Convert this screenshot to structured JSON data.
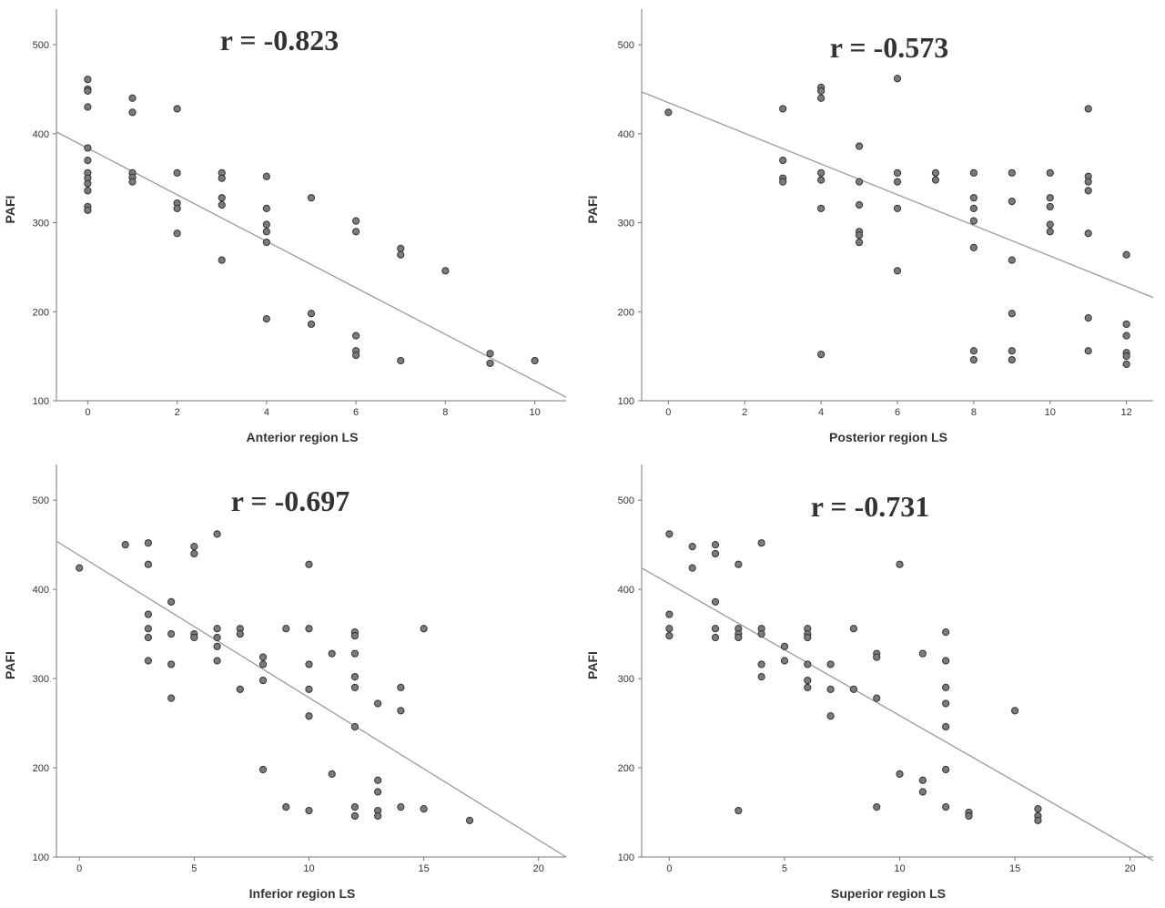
{
  "chart_data": [
    {
      "type": "scatter",
      "title": "r = -0.823",
      "xlabel": "Anterior region LS",
      "ylabel": "PAFI",
      "xlim": [
        -0.7,
        10.7
      ],
      "ylim": [
        100,
        540
      ],
      "xticks": [
        0,
        2,
        4,
        6,
        8,
        10
      ],
      "yticks": [
        100,
        200,
        300,
        400,
        500
      ],
      "fit_line": [
        [
          -0.7,
          402
        ],
        [
          10.7,
          104
        ]
      ],
      "points": [
        [
          0,
          461
        ],
        [
          0,
          450
        ],
        [
          0,
          448
        ],
        [
          0,
          430
        ],
        [
          0,
          384
        ],
        [
          0,
          370
        ],
        [
          0,
          356
        ],
        [
          0,
          350
        ],
        [
          0,
          344
        ],
        [
          0,
          336
        ],
        [
          0,
          318
        ],
        [
          0,
          314
        ],
        [
          1,
          440
        ],
        [
          1,
          424
        ],
        [
          1,
          356
        ],
        [
          1,
          351
        ],
        [
          1,
          346
        ],
        [
          2,
          428
        ],
        [
          2,
          356
        ],
        [
          2,
          322
        ],
        [
          2,
          316
        ],
        [
          2,
          288
        ],
        [
          3,
          356
        ],
        [
          3,
          350
        ],
        [
          3,
          328
        ],
        [
          3,
          320
        ],
        [
          3,
          258
        ],
        [
          4,
          352
        ],
        [
          4,
          316
        ],
        [
          4,
          298
        ],
        [
          4,
          290
        ],
        [
          4,
          278
        ],
        [
          4,
          192
        ],
        [
          5,
          328
        ],
        [
          5,
          198
        ],
        [
          5,
          186
        ],
        [
          6,
          302
        ],
        [
          6,
          290
        ],
        [
          6,
          173
        ],
        [
          6,
          156
        ],
        [
          6,
          151
        ],
        [
          7,
          271
        ],
        [
          7,
          264
        ],
        [
          7,
          145
        ],
        [
          8,
          246
        ],
        [
          9,
          153
        ],
        [
          9,
          142
        ],
        [
          10,
          145
        ]
      ]
    },
    {
      "type": "scatter",
      "title": "r = -0.573",
      "xlabel": "Posterior region LS",
      "ylabel": "PAFI",
      "xlim": [
        -0.7,
        12.7
      ],
      "ylim": [
        100,
        540
      ],
      "xticks": [
        0,
        2,
        4,
        6,
        8,
        10,
        12
      ],
      "yticks": [
        100,
        200,
        300,
        400,
        500
      ],
      "fit_line": [
        [
          -0.7,
          447
        ],
        [
          12.7,
          216
        ]
      ],
      "points": [
        [
          0,
          424
        ],
        [
          3,
          428
        ],
        [
          3,
          370
        ],
        [
          3,
          350
        ],
        [
          3,
          346
        ],
        [
          4,
          452
        ],
        [
          4,
          448
        ],
        [
          4,
          440
        ],
        [
          4,
          356
        ],
        [
          4,
          348
        ],
        [
          4,
          316
        ],
        [
          4,
          152
        ],
        [
          5,
          386
        ],
        [
          5,
          346
        ],
        [
          5,
          320
        ],
        [
          5,
          290
        ],
        [
          5,
          286
        ],
        [
          5,
          278
        ],
        [
          6,
          462
        ],
        [
          6,
          356
        ],
        [
          6,
          346
        ],
        [
          6,
          316
        ],
        [
          6,
          246
        ],
        [
          7,
          356
        ],
        [
          7,
          348
        ],
        [
          8,
          356
        ],
        [
          8,
          328
        ],
        [
          8,
          316
        ],
        [
          8,
          302
        ],
        [
          8,
          272
        ],
        [
          8,
          156
        ],
        [
          8,
          146
        ],
        [
          9,
          356
        ],
        [
          9,
          324
        ],
        [
          9,
          258
        ],
        [
          9,
          198
        ],
        [
          9,
          156
        ],
        [
          9,
          146
        ],
        [
          10,
          356
        ],
        [
          10,
          328
        ],
        [
          10,
          318
        ],
        [
          10,
          298
        ],
        [
          10,
          290
        ],
        [
          11,
          428
        ],
        [
          11,
          352
        ],
        [
          11,
          346
        ],
        [
          11,
          336
        ],
        [
          11,
          288
        ],
        [
          11,
          193
        ],
        [
          11,
          156
        ],
        [
          12,
          264
        ],
        [
          12,
          186
        ],
        [
          12,
          173
        ],
        [
          12,
          154
        ],
        [
          12,
          150
        ],
        [
          12,
          141
        ]
      ]
    },
    {
      "type": "scatter",
      "title": "r = -0.697",
      "xlabel": "Inferior region LS",
      "ylabel": "PAFI",
      "xlim": [
        -1,
        21.2
      ],
      "ylim": [
        100,
        540
      ],
      "xticks": [
        0,
        5,
        10,
        15,
        20
      ],
      "yticks": [
        100,
        200,
        300,
        400,
        500
      ],
      "fit_line": [
        [
          -1,
          454
        ],
        [
          21.2,
          100
        ]
      ],
      "points": [
        [
          0,
          424
        ],
        [
          2,
          450
        ],
        [
          3,
          452
        ],
        [
          3,
          428
        ],
        [
          3,
          372
        ],
        [
          3,
          356
        ],
        [
          3,
          346
        ],
        [
          3,
          320
        ],
        [
          4,
          386
        ],
        [
          4,
          350
        ],
        [
          4,
          316
        ],
        [
          4,
          278
        ],
        [
          5,
          448
        ],
        [
          5,
          440
        ],
        [
          5,
          350
        ],
        [
          5,
          346
        ],
        [
          6,
          462
        ],
        [
          6,
          356
        ],
        [
          6,
          346
        ],
        [
          6,
          336
        ],
        [
          6,
          320
        ],
        [
          7,
          356
        ],
        [
          7,
          350
        ],
        [
          7,
          288
        ],
        [
          8,
          324
        ],
        [
          8,
          316
        ],
        [
          8,
          298
        ],
        [
          8,
          198
        ],
        [
          9,
          356
        ],
        [
          9,
          156
        ],
        [
          10,
          428
        ],
        [
          10,
          356
        ],
        [
          10,
          316
        ],
        [
          10,
          288
        ],
        [
          10,
          258
        ],
        [
          10,
          152
        ],
        [
          11,
          328
        ],
        [
          11,
          193
        ],
        [
          12,
          352
        ],
        [
          12,
          348
        ],
        [
          12,
          328
        ],
        [
          12,
          302
        ],
        [
          12,
          290
        ],
        [
          12,
          246
        ],
        [
          12,
          156
        ],
        [
          12,
          146
        ],
        [
          13,
          272
        ],
        [
          13,
          186
        ],
        [
          13,
          173
        ],
        [
          13,
          152
        ],
        [
          13,
          146
        ],
        [
          14,
          290
        ],
        [
          14,
          264
        ],
        [
          14,
          156
        ],
        [
          15,
          356
        ],
        [
          15,
          154
        ],
        [
          17,
          141
        ]
      ]
    },
    {
      "type": "scatter",
      "title": "r = -0.731",
      "xlabel": "Superior region LS",
      "ylabel": "PAFI",
      "xlim": [
        -1.2,
        21
      ],
      "ylim": [
        100,
        540
      ],
      "xticks": [
        0,
        5,
        10,
        15,
        20
      ],
      "yticks": [
        100,
        200,
        300,
        400,
        500
      ],
      "fit_line": [
        [
          -1.2,
          424
        ],
        [
          21,
          96
        ]
      ],
      "points": [
        [
          0,
          462
        ],
        [
          0,
          372
        ],
        [
          0,
          356
        ],
        [
          0,
          348
        ],
        [
          1,
          448
        ],
        [
          1,
          424
        ],
        [
          2,
          450
        ],
        [
          2,
          440
        ],
        [
          2,
          386
        ],
        [
          2,
          356
        ],
        [
          2,
          346
        ],
        [
          3,
          428
        ],
        [
          3,
          356
        ],
        [
          3,
          350
        ],
        [
          3,
          346
        ],
        [
          3,
          152
        ],
        [
          4,
          452
        ],
        [
          4,
          356
        ],
        [
          4,
          350
        ],
        [
          4,
          316
        ],
        [
          4,
          302
        ],
        [
          5,
          336
        ],
        [
          5,
          320
        ],
        [
          6,
          356
        ],
        [
          6,
          350
        ],
        [
          6,
          346
        ],
        [
          6,
          316
        ],
        [
          6,
          298
        ],
        [
          6,
          290
        ],
        [
          7,
          316
        ],
        [
          7,
          288
        ],
        [
          7,
          258
        ],
        [
          8,
          356
        ],
        [
          8,
          288
        ],
        [
          9,
          328
        ],
        [
          9,
          324
        ],
        [
          9,
          278
        ],
        [
          9,
          156
        ],
        [
          10,
          428
        ],
        [
          10,
          193
        ],
        [
          11,
          328
        ],
        [
          11,
          186
        ],
        [
          11,
          173
        ],
        [
          12,
          352
        ],
        [
          12,
          320
        ],
        [
          12,
          290
        ],
        [
          12,
          272
        ],
        [
          12,
          246
        ],
        [
          12,
          198
        ],
        [
          12,
          156
        ],
        [
          13,
          150
        ],
        [
          13,
          146
        ],
        [
          15,
          264
        ],
        [
          16,
          154
        ],
        [
          16,
          146
        ],
        [
          16,
          141
        ]
      ]
    }
  ]
}
